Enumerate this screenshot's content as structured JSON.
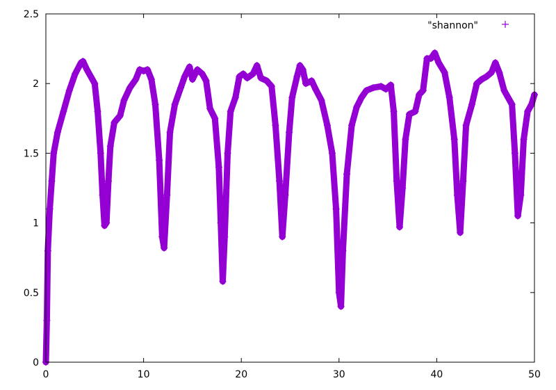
{
  "chart_data": {
    "type": "line",
    "title": "",
    "xlabel": "",
    "ylabel": "",
    "xlim": [
      0,
      50
    ],
    "ylim": [
      0,
      2.5
    ],
    "xticks": [
      "0",
      "10",
      "20",
      "30",
      "40",
      "50"
    ],
    "yticks": [
      "0",
      "0.5",
      "1",
      "1.5",
      "2",
      "2.5"
    ],
    "grid": false,
    "legend_position": "top-right",
    "series": [
      {
        "name": "\"shannon\"",
        "color": "#9400d3",
        "marker": "plus",
        "x": [
          0,
          0.1,
          0.2,
          0.4,
          0.6,
          0.8,
          1.2,
          1.8,
          2.4,
          3,
          3.6,
          3.8,
          4.2,
          4.6,
          5.0,
          5.3,
          5.6,
          5.8,
          6.0,
          6.2,
          6.4,
          6.6,
          7.0,
          7.6,
          8.0,
          8.6,
          9.2,
          9.6,
          10,
          10.4,
          10.8,
          11.2,
          11.6,
          11.9,
          12.1,
          12.4,
          12.7,
          13.2,
          13.8,
          14.2,
          14.7,
          15,
          15.5,
          16,
          16.4,
          16.8,
          17.3,
          17.7,
          17.9,
          18.1,
          18.3,
          18.6,
          18.9,
          19.4,
          19.8,
          20.2,
          20.6,
          21.2,
          21.6,
          22,
          22.6,
          23.1,
          23.5,
          23.9,
          24.2,
          24.5,
          24.9,
          25.2,
          25.7,
          26,
          26.3,
          26.6,
          27.2,
          27.6,
          28.2,
          28.8,
          29.3,
          29.7,
          30.0,
          30.2,
          30.4,
          30.8,
          31.3,
          31.8,
          32.3,
          32.8,
          33.5,
          34.3,
          34.8,
          35.3,
          35.6,
          35.9,
          36.2,
          36.5,
          36.8,
          37.2,
          37.8,
          38.2,
          38.6,
          39,
          39.4,
          39.8,
          40.2,
          40.8,
          41.3,
          41.8,
          42.1,
          42.4,
          42.7,
          43,
          43.6,
          44.1,
          44.6,
          45.1,
          45.6,
          46.0,
          46.4,
          46.9,
          47.3,
          47.7,
          48.0,
          48.3,
          48.6,
          48.9,
          49.3,
          49.7,
          50
        ],
        "y": [
          0,
          0.3,
          0.8,
          1.1,
          1.3,
          1.5,
          1.65,
          1.8,
          1.95,
          2.07,
          2.15,
          2.16,
          2.1,
          2.05,
          2.0,
          1.8,
          1.5,
          1.2,
          0.98,
          1.0,
          1.3,
          1.55,
          1.72,
          1.77,
          1.88,
          1.97,
          2.03,
          2.1,
          2.09,
          2.1,
          2.03,
          1.85,
          1.45,
          0.9,
          0.82,
          1.2,
          1.65,
          1.85,
          1.97,
          2.05,
          2.12,
          2.03,
          2.1,
          2.07,
          2.02,
          1.82,
          1.75,
          1.4,
          1.0,
          0.58,
          0.9,
          1.5,
          1.8,
          1.9,
          2.05,
          2.07,
          2.04,
          2.07,
          2.13,
          2.04,
          2.02,
          1.98,
          1.7,
          1.3,
          0.9,
          1.2,
          1.65,
          1.9,
          2.05,
          2.13,
          2.1,
          2.0,
          2.02,
          1.96,
          1.88,
          1.7,
          1.5,
          1.1,
          0.5,
          0.4,
          0.8,
          1.35,
          1.7,
          1.83,
          1.9,
          1.95,
          1.97,
          1.98,
          1.96,
          1.99,
          1.8,
          1.3,
          0.97,
          1.25,
          1.6,
          1.78,
          1.8,
          1.92,
          1.95,
          2.18,
          2.18,
          2.22,
          2.15,
          2.08,
          1.9,
          1.6,
          1.2,
          0.93,
          1.3,
          1.7,
          1.85,
          2.0,
          2.03,
          2.05,
          2.08,
          2.15,
          2.08,
          1.95,
          1.9,
          1.85,
          1.5,
          1.05,
          1.2,
          1.6,
          1.8,
          1.85,
          1.92
        ]
      }
    ]
  }
}
